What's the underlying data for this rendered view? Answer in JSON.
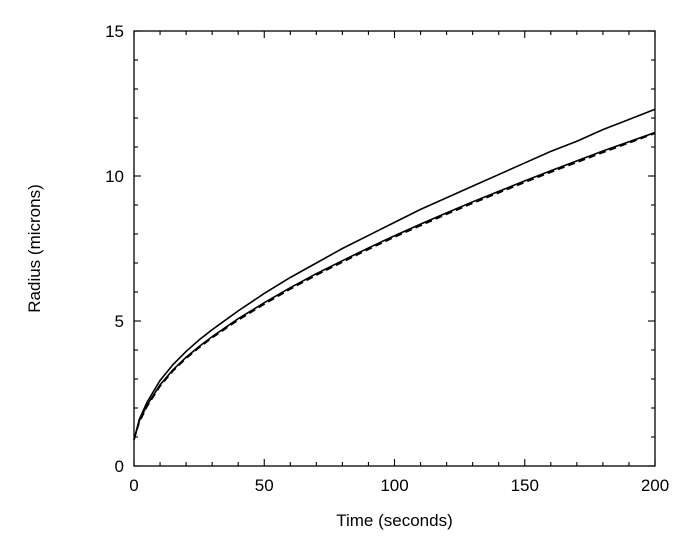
{
  "chart_data": {
    "type": "line",
    "title": "",
    "xlabel": "Time (seconds)",
    "ylabel": "Radius (microns)",
    "xlim": [
      0,
      200
    ],
    "ylim": [
      0,
      15
    ],
    "xticks": [
      0,
      50,
      100,
      150,
      200
    ],
    "yticks": [
      0,
      5,
      10,
      15
    ],
    "grid": false,
    "legend": "none",
    "x": [
      0,
      2,
      5,
      10,
      15,
      20,
      25,
      30,
      40,
      50,
      60,
      70,
      80,
      90,
      100,
      110,
      120,
      130,
      140,
      150,
      160,
      170,
      180,
      190,
      200
    ],
    "series": [
      {
        "style": "solid",
        "values": [
          0.9,
          1.6,
          2.2,
          2.95,
          3.5,
          3.95,
          4.35,
          4.7,
          5.35,
          5.95,
          6.5,
          7.0,
          7.5,
          7.95,
          8.4,
          8.85,
          9.25,
          9.65,
          10.05,
          10.45,
          10.85,
          11.2,
          11.6,
          11.95,
          12.3
        ]
      },
      {
        "style": "solid",
        "values": [
          0.9,
          1.55,
          2.1,
          2.8,
          3.32,
          3.75,
          4.12,
          4.46,
          5.08,
          5.63,
          6.15,
          6.63,
          7.08,
          7.52,
          7.94,
          8.34,
          8.73,
          9.11,
          9.47,
          9.83,
          10.18,
          10.52,
          10.86,
          11.18,
          11.5
        ]
      },
      {
        "style": "dashed",
        "values": [
          0.9,
          1.5,
          2.05,
          2.75,
          3.28,
          3.71,
          4.08,
          4.42,
          5.03,
          5.58,
          6.1,
          6.58,
          7.03,
          7.47,
          7.89,
          8.29,
          8.68,
          9.06,
          9.42,
          9.78,
          10.13,
          10.47,
          10.81,
          11.14,
          11.47
        ]
      }
    ]
  }
}
